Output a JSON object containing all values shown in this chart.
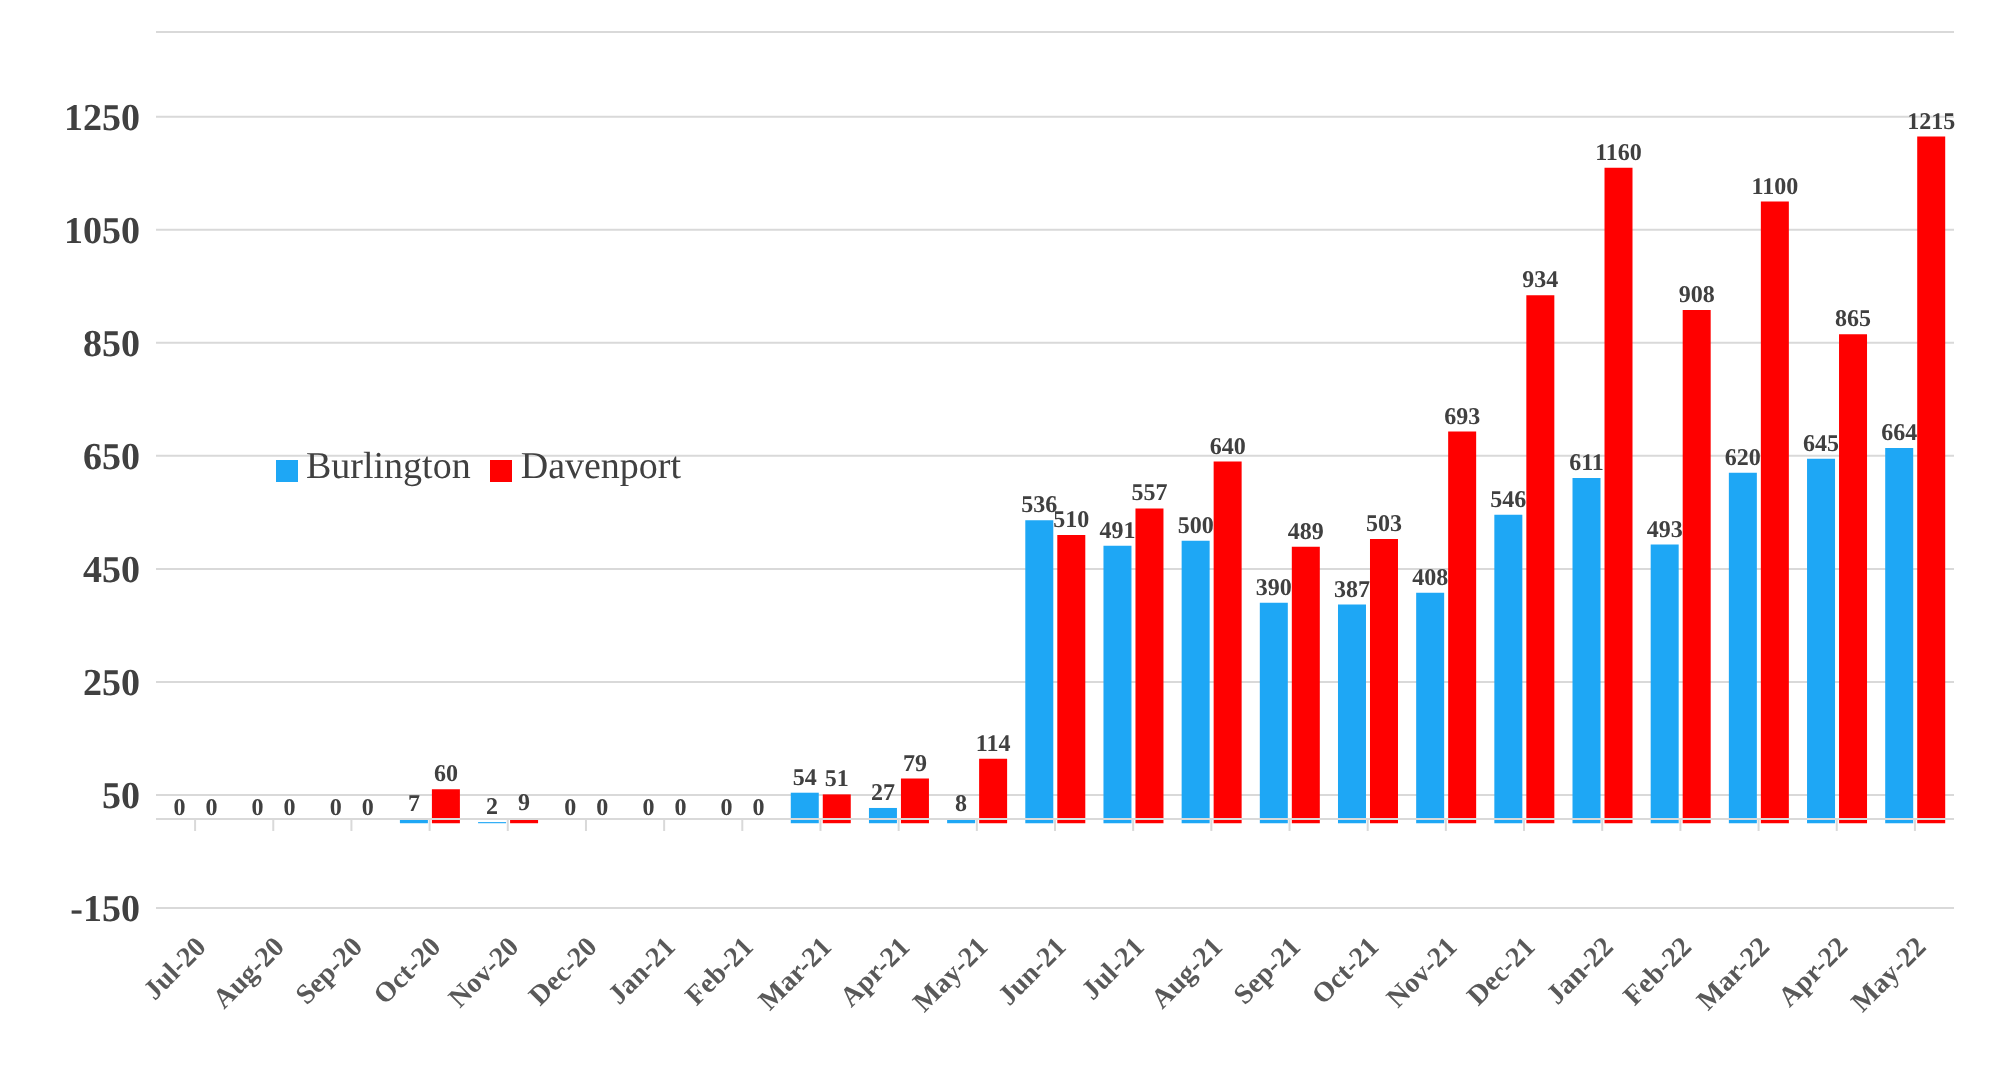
{
  "chart_data": {
    "type": "bar",
    "categories": [
      "Jul-20",
      "Aug-20",
      "Sep-20",
      "Oct-20",
      "Nov-20",
      "Dec-20",
      "Jan-21",
      "Feb-21",
      "Mar-21",
      "Apr-21",
      "May-21",
      "Jun-21",
      "Jul-21",
      "Aug-21",
      "Sep-21",
      "Oct-21",
      "Nov-21",
      "Dec-21",
      "Jan-22",
      "Feb-22",
      "Mar-22",
      "Apr-22",
      "May-22"
    ],
    "series": [
      {
        "name": "Burlington",
        "color": "#1ea7f5",
        "values": [
          0,
          0,
          0,
          7,
          2,
          0,
          0,
          0,
          54,
          27,
          8,
          536,
          491,
          500,
          390,
          387,
          408,
          546,
          611,
          493,
          620,
          645,
          664
        ]
      },
      {
        "name": "Davenport",
        "color": "#ff0000",
        "values": [
          0,
          0,
          0,
          60,
          9,
          0,
          0,
          0,
          51,
          79,
          114,
          510,
          557,
          640,
          489,
          503,
          693,
          934,
          1160,
          908,
          1100,
          865,
          1215
        ]
      }
    ],
    "ylim": [
      -150,
      1400
    ],
    "yticks": [
      -150,
      50,
      250,
      450,
      650,
      850,
      1050,
      1250
    ],
    "grid": "y",
    "legend": "left",
    "data_labels": true
  }
}
